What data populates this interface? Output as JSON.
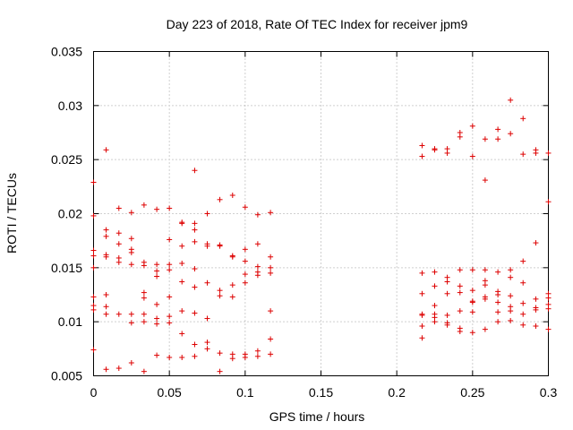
{
  "chart_data": {
    "type": "scatter",
    "title": "Day 223 of 2018, Rate Of TEC Index for receiver jpm9",
    "xlabel": "GPS time / hours",
    "ylabel": "ROTI / TECUs",
    "xlim": [
      0,
      0.3
    ],
    "ylim": [
      0.005,
      0.035
    ],
    "grid": true,
    "marker": "+",
    "color": "#dd0000",
    "xticks": [
      0,
      0.05,
      0.1,
      0.15,
      0.2,
      0.25,
      0.3
    ],
    "xtick_labels": [
      "0",
      "0.05",
      "0.1",
      "0.15",
      "0.2",
      "0.25",
      "0.3"
    ],
    "yticks": [
      0.005,
      0.01,
      0.015,
      0.02,
      0.025,
      0.03,
      0.035
    ],
    "ytick_labels": [
      "0.005",
      "0.01",
      "0.015",
      "0.02",
      "0.025",
      "0.03",
      "0.035"
    ],
    "series": [
      {
        "name": "ROTI",
        "points": [
          [
            0.0,
            0.0229
          ],
          [
            0.0,
            0.0198
          ],
          [
            0.0,
            0.0166
          ],
          [
            0.0,
            0.0161
          ],
          [
            0.0,
            0.015
          ],
          [
            0.0,
            0.0123
          ],
          [
            0.0,
            0.0115
          ],
          [
            0.0,
            0.0111
          ],
          [
            0.0,
            0.0074
          ],
          [
            0.0083,
            0.0259
          ],
          [
            0.0083,
            0.0185
          ],
          [
            0.0083,
            0.0179
          ],
          [
            0.0083,
            0.0162
          ],
          [
            0.0083,
            0.016
          ],
          [
            0.0083,
            0.0125
          ],
          [
            0.0083,
            0.0114
          ],
          [
            0.0083,
            0.0107
          ],
          [
            0.0083,
            0.0056
          ],
          [
            0.0167,
            0.0205
          ],
          [
            0.0167,
            0.0182
          ],
          [
            0.0167,
            0.0172
          ],
          [
            0.0167,
            0.0159
          ],
          [
            0.0167,
            0.0155
          ],
          [
            0.0167,
            0.0107
          ],
          [
            0.0167,
            0.0057
          ],
          [
            0.025,
            0.0201
          ],
          [
            0.025,
            0.0177
          ],
          [
            0.025,
            0.0167
          ],
          [
            0.025,
            0.0164
          ],
          [
            0.025,
            0.0153
          ],
          [
            0.025,
            0.0107
          ],
          [
            0.025,
            0.0099
          ],
          [
            0.025,
            0.0062
          ],
          [
            0.0333,
            0.0208
          ],
          [
            0.0333,
            0.0155
          ],
          [
            0.0333,
            0.0152
          ],
          [
            0.0333,
            0.0127
          ],
          [
            0.0333,
            0.0122
          ],
          [
            0.0333,
            0.0107
          ],
          [
            0.0333,
            0.01
          ],
          [
            0.0333,
            0.0054
          ],
          [
            0.0417,
            0.0204
          ],
          [
            0.0417,
            0.0153
          ],
          [
            0.0417,
            0.0147
          ],
          [
            0.0417,
            0.0142
          ],
          [
            0.0417,
            0.0116
          ],
          [
            0.0417,
            0.0103
          ],
          [
            0.0417,
            0.0098
          ],
          [
            0.0417,
            0.0069
          ],
          [
            0.05,
            0.0205
          ],
          [
            0.05,
            0.0176
          ],
          [
            0.05,
            0.0153
          ],
          [
            0.05,
            0.0148
          ],
          [
            0.05,
            0.0123
          ],
          [
            0.05,
            0.0105
          ],
          [
            0.05,
            0.0099
          ],
          [
            0.05,
            0.0067
          ],
          [
            0.0583,
            0.0192
          ],
          [
            0.0583,
            0.0191
          ],
          [
            0.0583,
            0.017
          ],
          [
            0.0583,
            0.0154
          ],
          [
            0.0583,
            0.0137
          ],
          [
            0.0583,
            0.011
          ],
          [
            0.0583,
            0.0089
          ],
          [
            0.0583,
            0.0067
          ],
          [
            0.0667,
            0.024
          ],
          [
            0.0667,
            0.0191
          ],
          [
            0.0667,
            0.0185
          ],
          [
            0.0667,
            0.0174
          ],
          [
            0.0667,
            0.0149
          ],
          [
            0.0667,
            0.0132
          ],
          [
            0.0667,
            0.0108
          ],
          [
            0.0667,
            0.0079
          ],
          [
            0.0667,
            0.0068
          ],
          [
            0.075,
            0.02
          ],
          [
            0.075,
            0.0172
          ],
          [
            0.075,
            0.017
          ],
          [
            0.075,
            0.0136
          ],
          [
            0.075,
            0.0103
          ],
          [
            0.075,
            0.0081
          ],
          [
            0.075,
            0.0075
          ],
          [
            0.0833,
            0.0213
          ],
          [
            0.0833,
            0.0171
          ],
          [
            0.0833,
            0.017
          ],
          [
            0.0833,
            0.0129
          ],
          [
            0.0833,
            0.0124
          ],
          [
            0.0833,
            0.0071
          ],
          [
            0.0833,
            0.0054
          ],
          [
            0.0917,
            0.0217
          ],
          [
            0.0917,
            0.0161
          ],
          [
            0.0917,
            0.016
          ],
          [
            0.0917,
            0.0134
          ],
          [
            0.0917,
            0.0123
          ],
          [
            0.0917,
            0.007
          ],
          [
            0.0917,
            0.0066
          ],
          [
            0.1,
            0.0206
          ],
          [
            0.1,
            0.0167
          ],
          [
            0.1,
            0.0156
          ],
          [
            0.1,
            0.0144
          ],
          [
            0.1,
            0.0136
          ],
          [
            0.1,
            0.007
          ],
          [
            0.1,
            0.0067
          ],
          [
            0.1083,
            0.0199
          ],
          [
            0.1083,
            0.0172
          ],
          [
            0.1083,
            0.0151
          ],
          [
            0.1083,
            0.0146
          ],
          [
            0.1083,
            0.0143
          ],
          [
            0.1083,
            0.0073
          ],
          [
            0.1083,
            0.0068
          ],
          [
            0.1167,
            0.0201
          ],
          [
            0.1167,
            0.016
          ],
          [
            0.1167,
            0.015
          ],
          [
            0.1167,
            0.0145
          ],
          [
            0.1167,
            0.011
          ],
          [
            0.1167,
            0.0084
          ],
          [
            0.1167,
            0.007
          ],
          [
            0.2167,
            0.0263
          ],
          [
            0.2167,
            0.0253
          ],
          [
            0.2167,
            0.0145
          ],
          [
            0.2167,
            0.0126
          ],
          [
            0.2167,
            0.0107
          ],
          [
            0.2167,
            0.0106
          ],
          [
            0.2167,
            0.0096
          ],
          [
            0.2167,
            0.0085
          ],
          [
            0.225,
            0.026
          ],
          [
            0.225,
            0.0259
          ],
          [
            0.225,
            0.0146
          ],
          [
            0.225,
            0.0133
          ],
          [
            0.225,
            0.0115
          ],
          [
            0.225,
            0.0107
          ],
          [
            0.225,
            0.0104
          ],
          [
            0.225,
            0.01
          ],
          [
            0.2333,
            0.026
          ],
          [
            0.2333,
            0.0256
          ],
          [
            0.2333,
            0.0141
          ],
          [
            0.2333,
            0.0137
          ],
          [
            0.2333,
            0.0126
          ],
          [
            0.2333,
            0.0106
          ],
          [
            0.2333,
            0.0099
          ],
          [
            0.2333,
            0.0097
          ],
          [
            0.2417,
            0.0275
          ],
          [
            0.2417,
            0.0271
          ],
          [
            0.2417,
            0.0148
          ],
          [
            0.2417,
            0.0133
          ],
          [
            0.2417,
            0.0127
          ],
          [
            0.2417,
            0.011
          ],
          [
            0.2417,
            0.0094
          ],
          [
            0.2417,
            0.0091
          ],
          [
            0.25,
            0.0281
          ],
          [
            0.25,
            0.0253
          ],
          [
            0.25,
            0.0148
          ],
          [
            0.25,
            0.0129
          ],
          [
            0.25,
            0.0119
          ],
          [
            0.25,
            0.0118
          ],
          [
            0.25,
            0.0109
          ],
          [
            0.25,
            0.009
          ],
          [
            0.2583,
            0.0269
          ],
          [
            0.2583,
            0.0231
          ],
          [
            0.2583,
            0.0148
          ],
          [
            0.2583,
            0.0138
          ],
          [
            0.2583,
            0.0134
          ],
          [
            0.2583,
            0.0123
          ],
          [
            0.2583,
            0.0121
          ],
          [
            0.2583,
            0.0093
          ],
          [
            0.2667,
            0.0278
          ],
          [
            0.2667,
            0.0269
          ],
          [
            0.2667,
            0.0146
          ],
          [
            0.2667,
            0.0128
          ],
          [
            0.2667,
            0.0125
          ],
          [
            0.2667,
            0.0118
          ],
          [
            0.2667,
            0.0109
          ],
          [
            0.2667,
            0.01
          ],
          [
            0.275,
            0.0305
          ],
          [
            0.275,
            0.0274
          ],
          [
            0.275,
            0.0148
          ],
          [
            0.275,
            0.0141
          ],
          [
            0.275,
            0.0124
          ],
          [
            0.275,
            0.0114
          ],
          [
            0.275,
            0.011
          ],
          [
            0.275,
            0.0101
          ],
          [
            0.2833,
            0.0288
          ],
          [
            0.2833,
            0.0255
          ],
          [
            0.2833,
            0.0156
          ],
          [
            0.2833,
            0.0136
          ],
          [
            0.2833,
            0.0117
          ],
          [
            0.2833,
            0.0107
          ],
          [
            0.2833,
            0.0097
          ],
          [
            0.2917,
            0.0259
          ],
          [
            0.2917,
            0.0256
          ],
          [
            0.2917,
            0.0173
          ],
          [
            0.2917,
            0.0121
          ],
          [
            0.2917,
            0.0113
          ],
          [
            0.2917,
            0.0111
          ],
          [
            0.2917,
            0.0096
          ],
          [
            0.3,
            0.0256
          ],
          [
            0.3,
            0.0211
          ],
          [
            0.3,
            0.0126
          ],
          [
            0.3,
            0.0122
          ],
          [
            0.3,
            0.0116
          ],
          [
            0.3,
            0.0112
          ],
          [
            0.3,
            0.0093
          ]
        ]
      }
    ]
  }
}
